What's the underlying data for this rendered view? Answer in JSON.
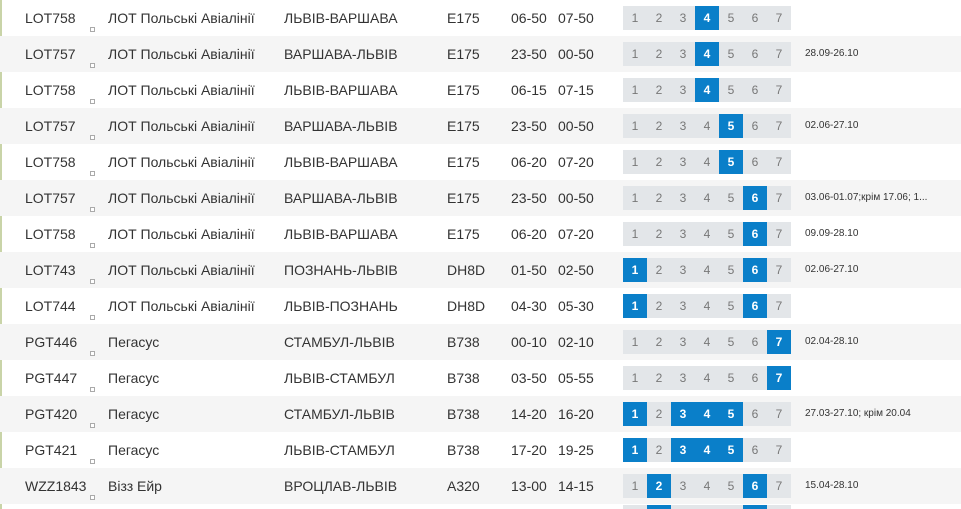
{
  "flights": [
    {
      "code": "LOT758",
      "airline": "ЛОТ Польські Авіалінії",
      "route": "ЛЬВІВ-ВАРШАВА",
      "aircraft": "E175",
      "dep": "06-50",
      "arr": "07-50",
      "days": [
        "1",
        "2",
        "3",
        "4",
        "5",
        "6",
        "7"
      ],
      "active": [
        4
      ],
      "note": ""
    },
    {
      "code": "LOT757",
      "airline": "ЛОТ Польські Авіалінії",
      "route": "ВАРШАВА-ЛЬВІВ",
      "aircraft": "E175",
      "dep": "23-50",
      "arr": "00-50",
      "days": [
        "1",
        "2",
        "3",
        "4",
        "5",
        "6",
        "7"
      ],
      "active": [
        4
      ],
      "note": "28.09-26.10"
    },
    {
      "code": "LOT758",
      "airline": "ЛОТ Польські Авіалінії",
      "route": "ЛЬВІВ-ВАРШАВА",
      "aircraft": "E175",
      "dep": "06-15",
      "arr": "07-15",
      "days": [
        "1",
        "2",
        "3",
        "4",
        "5",
        "6",
        "7"
      ],
      "active": [
        4
      ],
      "note": ""
    },
    {
      "code": "LOT757",
      "airline": "ЛОТ Польські Авіалінії",
      "route": "ВАРШАВА-ЛЬВІВ",
      "aircraft": "E175",
      "dep": "23-50",
      "arr": "00-50",
      "days": [
        "1",
        "2",
        "3",
        "4",
        "5",
        "6",
        "7"
      ],
      "active": [
        5
      ],
      "note": "02.06-27.10"
    },
    {
      "code": "LOT758",
      "airline": "ЛОТ Польські Авіалінії",
      "route": "ЛЬВІВ-ВАРШАВА",
      "aircraft": "E175",
      "dep": "06-20",
      "arr": "07-20",
      "days": [
        "1",
        "2",
        "3",
        "4",
        "5",
        "6",
        "7"
      ],
      "active": [
        5
      ],
      "note": ""
    },
    {
      "code": "LOT757",
      "airline": "ЛОТ Польські Авіалінії",
      "route": "ВАРШАВА-ЛЬВІВ",
      "aircraft": "E175",
      "dep": "23-50",
      "arr": "00-50",
      "days": [
        "1",
        "2",
        "3",
        "4",
        "5",
        "6",
        "7"
      ],
      "active": [
        6
      ],
      "note": "03.06-01.07;крім 17.06; 1..."
    },
    {
      "code": "LOT758",
      "airline": "ЛОТ Польські Авіалінії",
      "route": "ЛЬВІВ-ВАРШАВА",
      "aircraft": "E175",
      "dep": "06-20",
      "arr": "07-20",
      "days": [
        "1",
        "2",
        "3",
        "4",
        "5",
        "6",
        "7"
      ],
      "active": [
        6
      ],
      "note": "09.09-28.10"
    },
    {
      "code": "LOT743",
      "airline": "ЛОТ Польські Авіалінії",
      "route": "ПОЗНАНЬ-ЛЬВІВ",
      "aircraft": "DH8D",
      "dep": "01-50",
      "arr": "02-50",
      "days": [
        "1",
        "2",
        "3",
        "4",
        "5",
        "6",
        "7"
      ],
      "active": [
        1,
        6
      ],
      "note": "02.06-27.10"
    },
    {
      "code": "LOT744",
      "airline": "ЛОТ Польські Авіалінії",
      "route": "ЛЬВІВ-ПОЗНАНЬ",
      "aircraft": "DH8D",
      "dep": "04-30",
      "arr": "05-30",
      "days": [
        "1",
        "2",
        "3",
        "4",
        "5",
        "6",
        "7"
      ],
      "active": [
        1,
        6
      ],
      "note": ""
    },
    {
      "code": "PGT446",
      "airline": "Пегасус",
      "route": "СТАМБУЛ-ЛЬВІВ",
      "aircraft": "B738",
      "dep": "00-10",
      "arr": "02-10",
      "days": [
        "1",
        "2",
        "3",
        "4",
        "5",
        "6",
        "7"
      ],
      "active": [
        7
      ],
      "note": "02.04-28.10"
    },
    {
      "code": "PGT447",
      "airline": "Пегасус",
      "route": "ЛЬВІВ-СТАМБУЛ",
      "aircraft": "B738",
      "dep": "03-50",
      "arr": "05-55",
      "days": [
        "1",
        "2",
        "3",
        "4",
        "5",
        "6",
        "7"
      ],
      "active": [
        7
      ],
      "note": ""
    },
    {
      "code": "PGT420",
      "airline": "Пегасус",
      "route": "СТАМБУЛ-ЛЬВІВ",
      "aircraft": "B738",
      "dep": "14-20",
      "arr": "16-20",
      "days": [
        "1",
        "2",
        "3",
        "4",
        "5",
        "6",
        "7"
      ],
      "active": [
        1,
        3,
        4,
        5
      ],
      "note": "27.03-27.10; крім 20.04"
    },
    {
      "code": "PGT421",
      "airline": "Пегасус",
      "route": "ЛЬВІВ-СТАМБУЛ",
      "aircraft": "B738",
      "dep": "17-20",
      "arr": "19-25",
      "days": [
        "1",
        "2",
        "3",
        "4",
        "5",
        "6",
        "7"
      ],
      "active": [
        1,
        3,
        4,
        5
      ],
      "note": ""
    },
    {
      "code": "WZZ1843",
      "airline": "Візз Ейр",
      "route": "ВРОЦЛАВ-ЛЬВІВ",
      "aircraft": "A320",
      "dep": "13-00",
      "arr": "14-15",
      "days": [
        "1",
        "2",
        "3",
        "4",
        "5",
        "6",
        "7"
      ],
      "active": [
        2,
        6
      ],
      "note": "15.04-28.10"
    }
  ],
  "colors": {
    "active_day": "#0a7fc9",
    "inactive_day": "#e3e6e9",
    "row_alt": "#f5f5f5"
  }
}
